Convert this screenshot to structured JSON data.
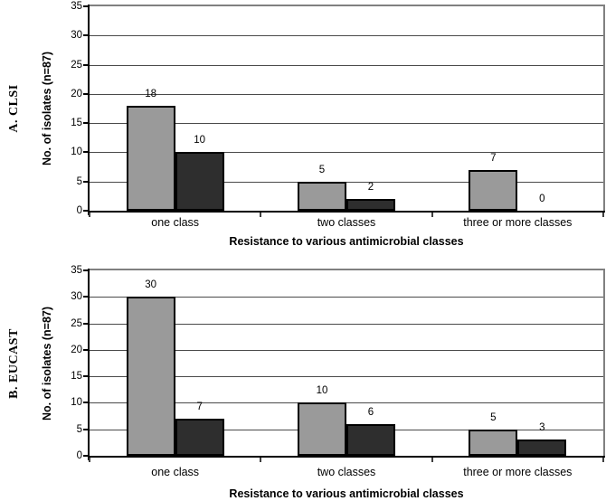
{
  "figure": {
    "background": "#ffffff",
    "text_color": "#000000",
    "colors": {
      "series1_fill": "#9a9a9a",
      "series2_fill": "#2e2e2e",
      "bar_border": "#000000",
      "gridline": "#4a4a4a",
      "plot_border": "#808080",
      "axis": "#000000",
      "tick": "#404040"
    }
  },
  "chart_data": [
    {
      "type": "bar",
      "panel_label": "A. CLSI",
      "ylabel": "No. of isolates (n=87)",
      "xlabel": "Resistance to various antimicrobial classes",
      "ylim": [
        0,
        35
      ],
      "ytick_step": 5,
      "yticks": [
        0,
        5,
        10,
        15,
        20,
        25,
        30,
        35
      ],
      "grid": true,
      "legend": "none",
      "data_labels": true,
      "categories": [
        "one class",
        "two classes",
        "three or more classes"
      ],
      "series": [
        {
          "name": "series-1",
          "color": "#9a9a9a",
          "values": [
            18,
            5,
            7
          ]
        },
        {
          "name": "series-2",
          "color": "#2e2e2e",
          "values": [
            10,
            2,
            0
          ]
        }
      ]
    },
    {
      "type": "bar",
      "panel_label": "B. EUCAST",
      "ylabel": "No. of isolates (n=87)",
      "xlabel": "Resistance to various antimicrobial classes",
      "ylim": [
        0,
        35
      ],
      "ytick_step": 5,
      "yticks": [
        0,
        5,
        10,
        15,
        20,
        25,
        30,
        35
      ],
      "grid": true,
      "legend": "none",
      "data_labels": true,
      "categories": [
        "one class",
        "two classes",
        "three or more classes"
      ],
      "series": [
        {
          "name": "series-1",
          "color": "#9a9a9a",
          "values": [
            30,
            10,
            5
          ]
        },
        {
          "name": "series-2",
          "color": "#2e2e2e",
          "values": [
            7,
            6,
            3
          ]
        }
      ]
    }
  ]
}
